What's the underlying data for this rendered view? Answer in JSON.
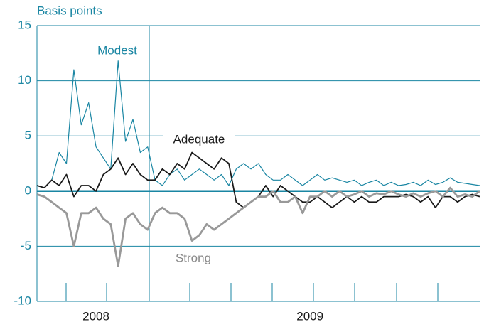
{
  "chart_data": {
    "type": "line",
    "y_label": "Basis points",
    "categories": [
      null,
      null,
      null,
      null,
      null,
      null,
      null,
      null,
      "2008",
      null,
      null,
      null,
      null,
      null,
      null,
      null,
      null,
      null,
      null,
      null,
      null,
      null,
      null,
      null,
      null,
      null,
      null,
      null,
      null,
      null,
      null,
      null,
      null,
      null,
      null,
      null,
      null,
      "2009",
      null,
      null,
      null,
      null,
      null,
      null,
      null,
      null,
      null,
      null,
      null,
      null,
      null,
      null,
      null,
      null,
      null,
      null,
      null,
      null,
      null,
      null,
      null
    ],
    "series": [
      {
        "name": "Modest",
        "color": "#1a86a3",
        "values": [
          0.5,
          0.3,
          1.0,
          3.5,
          2.5,
          11.0,
          6.0,
          8.0,
          4.0,
          3.0,
          2.0,
          11.8,
          4.5,
          6.5,
          3.5,
          4.0,
          1.0,
          0.5,
          1.5,
          2.0,
          1.0,
          1.5,
          2.0,
          1.5,
          1.0,
          1.5,
          0.5,
          2.0,
          2.5,
          2.0,
          2.5,
          1.5,
          1.0,
          1.0,
          1.5,
          1.0,
          0.5,
          1.0,
          1.5,
          1.0,
          1.2,
          1.0,
          0.8,
          1.0,
          0.5,
          0.8,
          1.0,
          0.5,
          0.8,
          0.5,
          0.6,
          0.8,
          0.5,
          1.0,
          0.6,
          0.8,
          1.2,
          0.8,
          0.7,
          0.6,
          0.5
        ]
      },
      {
        "name": "Adequate",
        "color": "#1a1a1a",
        "values": [
          0.5,
          0.3,
          1.0,
          0.5,
          1.5,
          -0.5,
          0.5,
          0.5,
          0,
          1.5,
          2.0,
          3.0,
          1.5,
          2.5,
          1.5,
          1.0,
          1.0,
          2.0,
          1.5,
          2.5,
          2.0,
          3.5,
          3.0,
          2.5,
          2.0,
          3.0,
          2.5,
          -1.0,
          -1.5,
          -1.0,
          -0.5,
          0.5,
          -0.5,
          0.5,
          0,
          -0.5,
          -1.0,
          -1.0,
          -0.5,
          -1.0,
          -1.5,
          -1.0,
          -0.5,
          -1.0,
          -0.5,
          -1.0,
          -1.0,
          -0.5,
          -0.5,
          -0.5,
          -0.3,
          -0.5,
          -1.0,
          -0.5,
          -1.5,
          -0.5,
          -0.5,
          -1.0,
          -0.5,
          -0.3,
          -0.5
        ]
      },
      {
        "name": "Strong",
        "color": "#999999",
        "values": [
          -0.3,
          -0.5,
          -1.0,
          -1.5,
          -2.0,
          -5.0,
          -2.0,
          -2.0,
          -1.5,
          -2.5,
          -3.0,
          -6.8,
          -2.5,
          -2.0,
          -3.0,
          -3.5,
          -2.0,
          -1.5,
          -2.0,
          -2.0,
          -2.5,
          -4.5,
          -4.0,
          -3.0,
          -3.5,
          -3.0,
          -2.5,
          -2.0,
          -1.5,
          -1.0,
          -0.5,
          -0.5,
          0,
          -1.0,
          -1.0,
          -0.5,
          -2.0,
          -0.5,
          -0.5,
          0,
          -0.5,
          0,
          -0.5,
          -0.3,
          0,
          -0.5,
          -0.2,
          -0.3,
          0,
          -0.3,
          -0.5,
          -0.2,
          -0.5,
          -0.2,
          0,
          -0.5,
          0.3,
          -0.5,
          -0.3,
          -0.5,
          0
        ]
      }
    ],
    "ylim": [
      -10,
      15
    ],
    "yticks": [
      -10,
      -5,
      0,
      5,
      10,
      15
    ],
    "grid": true
  }
}
